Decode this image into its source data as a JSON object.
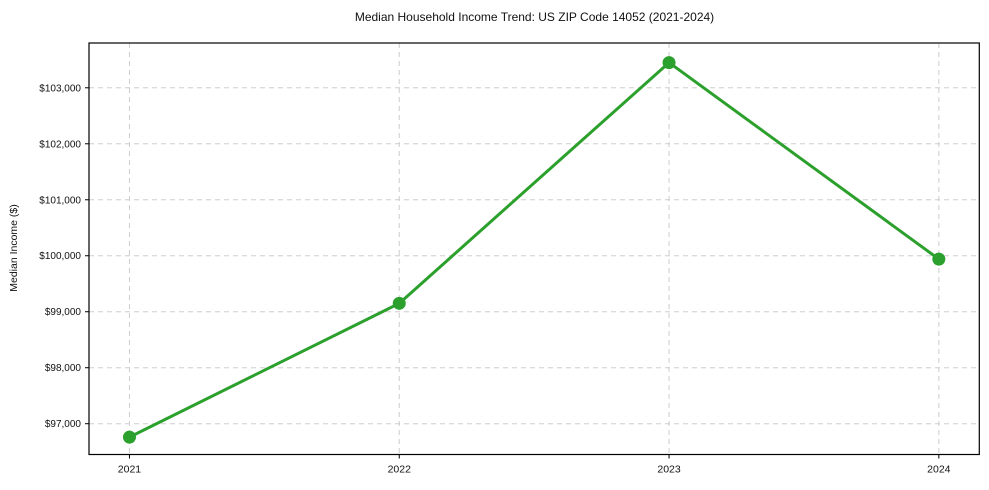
{
  "chart_data": {
    "type": "line",
    "title": "Median Household Income Trend: US ZIP Code 14052 (2021-2024)",
    "xlabel": "",
    "ylabel": "Median Income ($)",
    "x": [
      2021,
      2022,
      2023,
      2024
    ],
    "series": [
      {
        "values": [
          96760,
          99150,
          103450,
          99940
        ]
      }
    ],
    "xticks": [
      {
        "value": 2021,
        "label": "2021"
      },
      {
        "value": 2022,
        "label": "2022"
      },
      {
        "value": 2023,
        "label": "2023"
      },
      {
        "value": 2024,
        "label": "2024"
      }
    ],
    "yticks": [
      {
        "value": 97000,
        "label": "$97,000"
      },
      {
        "value": 98000,
        "label": "$98,000"
      },
      {
        "value": 99000,
        "label": "$99,000"
      },
      {
        "value": 100000,
        "label": "$100,000"
      },
      {
        "value": 101000,
        "label": "$101,000"
      },
      {
        "value": 102000,
        "label": "$102,000"
      },
      {
        "value": 103000,
        "label": "$103,000"
      }
    ],
    "xlim": [
      2020.85,
      2024.15
    ],
    "ylim": [
      96450,
      103800
    ],
    "grid": true,
    "grid_style": "dashed",
    "legend": "none",
    "colors": {
      "line": "#2ca02c",
      "marker": "#2ca02c",
      "grid": "#cdcdcd",
      "axis": "#000000",
      "text": "#111111",
      "background": "#ffffff"
    }
  }
}
